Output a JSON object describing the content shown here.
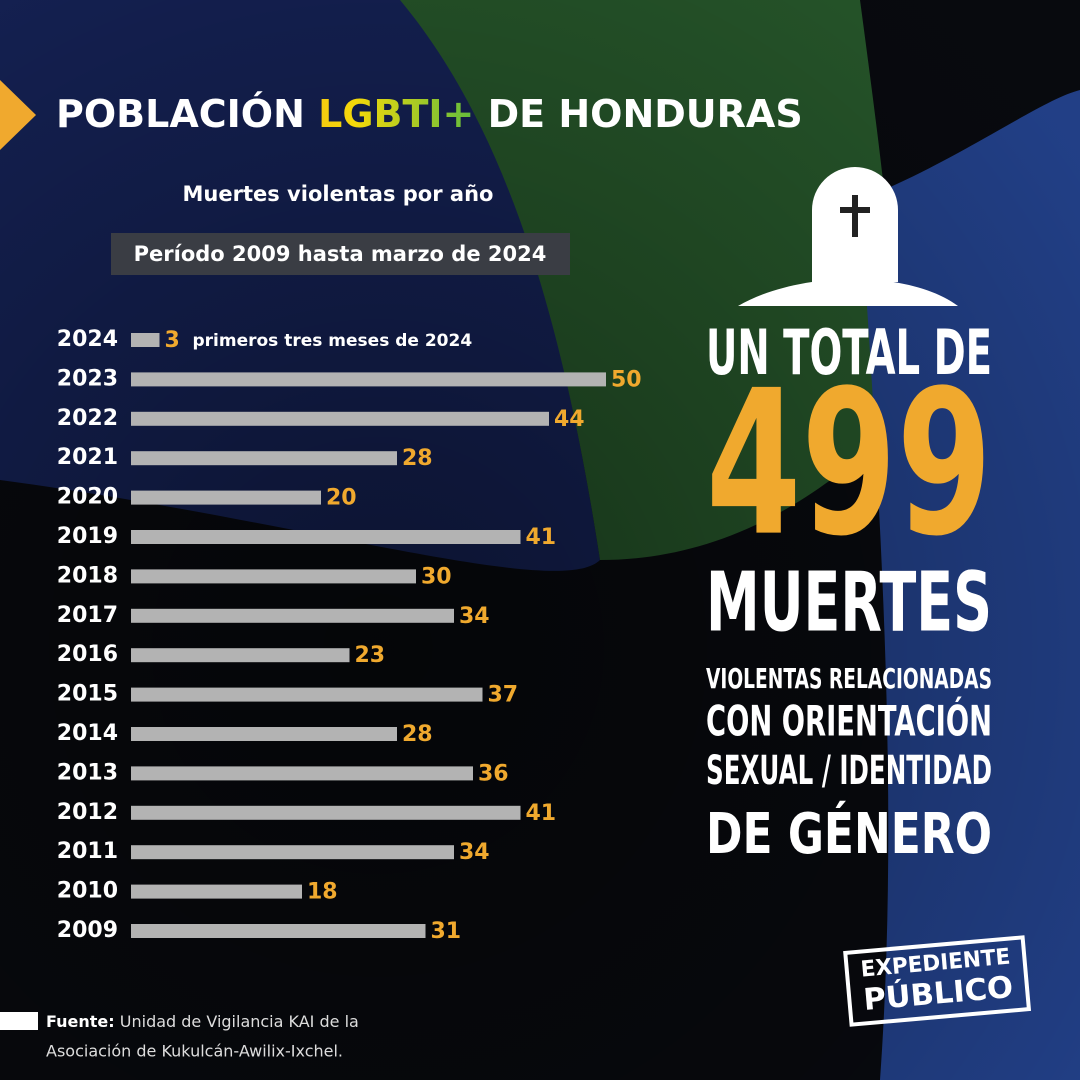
{
  "chart_data": {
    "type": "bar",
    "title": [
      "POBLACIÓN",
      "LGBTI+",
      "DE HONDURAS"
    ],
    "subtitle": "Muertes violentas por año",
    "period": "Período 2009 hasta marzo de 2024",
    "categories": [
      "2024",
      "2023",
      "2022",
      "2021",
      "2020",
      "2019",
      "2018",
      "2017",
      "2016",
      "2015",
      "2014",
      "2013",
      "2012",
      "2011",
      "2010",
      "2009"
    ],
    "values": [
      3,
      50,
      44,
      28,
      20,
      41,
      30,
      34,
      23,
      37,
      28,
      36,
      41,
      34,
      18,
      31
    ],
    "color": "#b3b3b3",
    "value_label_color": "#f0a92e",
    "annotation": "primeros tres meses de 2024",
    "total": {
      "lead": "UN TOTAL DE",
      "number": "499",
      "unit": "MUERTES",
      "lines": [
        "VIOLENTAS RELACIONADAS",
        "CON ORIENTACIÓN",
        "SEXUAL / IDENTIDAD",
        "DE GÉNERO"
      ]
    },
    "source": {
      "label": "Fuente:",
      "lines": [
        "Unidad de Vigilancia KAI de la",
        "Asociación de Kukulcán-Awilix-Ixchel."
      ]
    },
    "logo": [
      "EXPEDIENTE",
      "PÚBLICO"
    ]
  }
}
